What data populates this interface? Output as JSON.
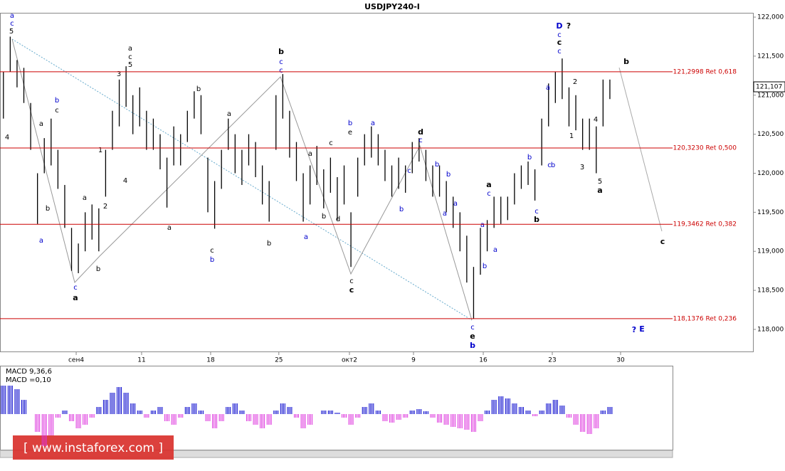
{
  "chart_data": {
    "type": "ohlc",
    "title": "USDJPY240-I",
    "bar_color": "#000000",
    "xlim": [
      -0.5,
      110
    ],
    "xticks": [
      {
        "value": 10.68,
        "label": "сен4"
      },
      {
        "value": 20.28,
        "label": "11"
      },
      {
        "value": 30.41,
        "label": "18"
      },
      {
        "value": 40.42,
        "label": "25"
      },
      {
        "value": 50.78,
        "label": "окт2"
      },
      {
        "value": 60.18,
        "label": "9"
      },
      {
        "value": 70.42,
        "label": "16"
      },
      {
        "value": 80.55,
        "label": "23"
      },
      {
        "value": 90.57,
        "label": "30"
      }
    ],
    "ylim": [
      117.708,
      122.055
    ],
    "yticks": [
      {
        "value": 122,
        "label": "122,000"
      },
      {
        "value": 121.5,
        "label": "121,500"
      },
      {
        "value": 121,
        "label": "121,000"
      },
      {
        "value": 120.5,
        "label": "120,500"
      },
      {
        "value": 120,
        "label": "120,000"
      },
      {
        "value": 119.5,
        "label": "119,500"
      },
      {
        "value": 119,
        "label": "119,000"
      },
      {
        "value": 118.5,
        "label": "118,500"
      },
      {
        "value": 118,
        "label": "118,000"
      }
    ],
    "last_price": {
      "value": 121.107,
      "label": "121,107"
    },
    "high": [
      121.3,
      121.75,
      121.45,
      121.35,
      120.9,
      120.0,
      120.45,
      120.7,
      120.3,
      119.85,
      119.3,
      119.1,
      119.5,
      119.6,
      119.55,
      120.3,
      120.8,
      121.2,
      121.37,
      121.0,
      121.1,
      120.8,
      120.7,
      120.5,
      120.2,
      120.6,
      120.5,
      120.8,
      121.05,
      121.0,
      120.2,
      119.9,
      120.3,
      120.7,
      120.5,
      120.3,
      120.5,
      120.4,
      120.1,
      119.9,
      121.0,
      121.27,
      120.8,
      120.4,
      120.0,
      120.1,
      120.35,
      120.05,
      120.2,
      119.95,
      120.1,
      119.5,
      120.2,
      120.5,
      120.6,
      120.5,
      120.3,
      120.1,
      120.2,
      120.1,
      120.4,
      120.45,
      120.3,
      120.1,
      120.1,
      119.9,
      119.7,
      119.5,
      119.2,
      118.8,
      119.3,
      119.4,
      119.7,
      119.7,
      119.7,
      120.0,
      120.1,
      120.15,
      120.05,
      120.7,
      121.15,
      121.3,
      121.47,
      121.1,
      121.0,
      120.7,
      120.7,
      120.6,
      121.2,
      121.2
    ],
    "low": [
      120.7,
      121.3,
      121.1,
      120.9,
      120.3,
      119.35,
      120.0,
      120.1,
      119.8,
      119.3,
      118.75,
      118.72,
      119.0,
      119.15,
      119.0,
      119.7,
      120.3,
      120.6,
      120.85,
      120.5,
      120.6,
      120.3,
      120.3,
      120.05,
      119.56,
      120.1,
      120.1,
      120.4,
      120.7,
      120.5,
      119.5,
      119.29,
      119.8,
      120.3,
      120.0,
      119.85,
      120.1,
      119.95,
      119.6,
      119.38,
      120.3,
      120.7,
      120.2,
      119.9,
      119.38,
      119.6,
      119.85,
      119.55,
      119.75,
      119.4,
      119.6,
      118.8,
      119.7,
      120.1,
      120.2,
      120.1,
      119.9,
      119.7,
      119.8,
      119.75,
      120.0,
      120.15,
      119.9,
      119.7,
      119.7,
      119.5,
      119.3,
      119.0,
      118.6,
      118.14,
      118.7,
      119.0,
      119.3,
      119.35,
      119.4,
      119.6,
      119.8,
      119.85,
      119.65,
      120.1,
      120.6,
      120.9,
      120.95,
      120.6,
      120.55,
      120.3,
      120.3,
      120.0,
      120.6,
      120.95
    ],
    "fib_color": "#cc0000",
    "levels": [
      {
        "value": 121.2998,
        "label": "121,2998 Ret 0,618"
      },
      {
        "value": 120.323,
        "label": "120,3230 Ret 0,500"
      },
      {
        "value": 119.3462,
        "label": "119,3462 Ret 0,382"
      },
      {
        "value": 118.1376,
        "label": "118,1376 Ret 0,236"
      }
    ],
    "annotations": [
      "a",
      "c",
      "5",
      "4",
      "a",
      "b",
      "a",
      "b",
      "c",
      "c",
      "a",
      "a",
      "b",
      "2",
      "1",
      "3",
      "4",
      "a",
      "c",
      "5",
      "b",
      "a",
      "a",
      "c",
      "b",
      "b",
      "c",
      "c",
      "b",
      "a",
      "a",
      "c",
      "b",
      "d",
      "b",
      "e",
      "a",
      "c",
      "c",
      "d",
      "c",
      "b",
      "c",
      "b",
      "b",
      "a",
      "a",
      "c",
      "e",
      "b",
      "a",
      "c",
      "a",
      "b",
      "a",
      "c",
      "b",
      "b",
      "c",
      "a",
      "D",
      "?",
      "c",
      "c",
      "c",
      "2",
      "b",
      "1",
      "3",
      "4",
      "5",
      "a",
      "b",
      "c",
      "?",
      "E"
    ],
    "macd": {
      "title": "MACD 9,36,6",
      "value_label": "MACD =0,10",
      "positive_color": "#0000cc",
      "negative_color": "#dd33dd",
      "ylim": [
        -0.5,
        0.62
      ],
      "values": [
        0.4,
        0.4,
        0.35,
        0.2,
        0.0,
        -0.25,
        -0.45,
        -0.3,
        -0.05,
        0.05,
        -0.1,
        -0.2,
        -0.15,
        -0.05,
        0.1,
        0.2,
        0.3,
        0.38,
        0.3,
        0.15,
        0.05,
        -0.05,
        0.05,
        0.1,
        -0.1,
        -0.15,
        -0.05,
        0.1,
        0.15,
        0.05,
        -0.1,
        -0.2,
        -0.1,
        0.1,
        0.15,
        0.05,
        -0.1,
        -0.15,
        -0.2,
        -0.15,
        0.05,
        0.15,
        0.1,
        -0.05,
        -0.2,
        -0.15,
        0.0,
        0.05,
        0.05,
        0.02,
        -0.05,
        -0.15,
        -0.05,
        0.1,
        0.15,
        0.05,
        -0.1,
        -0.12,
        -0.08,
        -0.05,
        0.05,
        0.07,
        0.04,
        -0.05,
        -0.12,
        -0.15,
        -0.18,
        -0.2,
        -0.22,
        -0.25,
        -0.1,
        0.05,
        0.2,
        0.25,
        0.22,
        0.15,
        0.1,
        0.05,
        -0.03,
        0.05,
        0.15,
        0.2,
        0.12,
        -0.05,
        -0.15,
        -0.25,
        -0.28,
        -0.2,
        0.05,
        0.1
      ]
    },
    "watermark": "[ www.instaforex.com ]"
  }
}
